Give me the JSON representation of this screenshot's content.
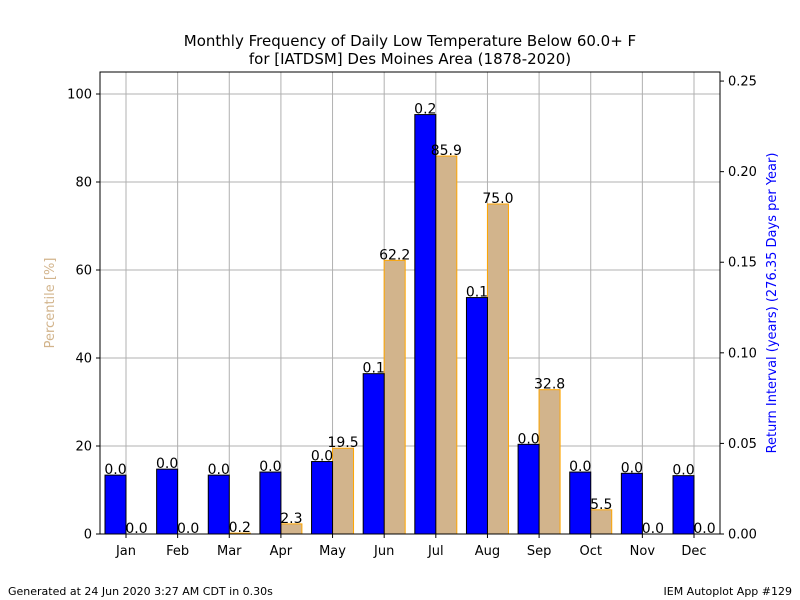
{
  "chart_data": {
    "type": "bar",
    "title": "Monthly Frequency of Daily Low Temperature Below 60.0+ F",
    "subtitle": "for [IATDSM] Des Moines Area (1878-2020)",
    "ylabel_left": "Percentile [%]",
    "ylabel_right": "Return Interval (years) (276.35 Days per Year)",
    "categories": [
      "Jan",
      "Feb",
      "Mar",
      "Apr",
      "May",
      "Jun",
      "Jul",
      "Aug",
      "Sep",
      "Oct",
      "Nov",
      "Dec"
    ],
    "ylim_left": [
      0,
      105
    ],
    "ylim_right": [
      0,
      0.255
    ],
    "yticks_left": [
      0,
      20,
      40,
      60,
      80,
      100
    ],
    "yticks_right": [
      0.0,
      0.05,
      0.1,
      0.15,
      0.2,
      0.25
    ],
    "grid": true,
    "series": [
      {
        "axis": "right",
        "color": "#0000ff",
        "values": [
          0.0325,
          0.0358,
          0.0325,
          0.0342,
          0.04,
          0.0885,
          0.2315,
          0.1305,
          0.0495,
          0.0342,
          0.0335,
          0.0322
        ],
        "labels": [
          "0.0",
          "0.0",
          "0.0",
          "0.0",
          "0.0",
          "0.1",
          "0.2",
          "0.1",
          "0.0",
          "0.0",
          "0.0",
          "0.0"
        ]
      },
      {
        "axis": "left",
        "color": "#d2b48c",
        "values": [
          0.0,
          0.0,
          0.2,
          2.3,
          19.5,
          62.2,
          85.9,
          75.0,
          32.8,
          5.5,
          0.0,
          0.0
        ],
        "labels": [
          "0.0",
          "0.0",
          "0.2",
          "2.3",
          "19.5",
          "62.2",
          "85.9",
          "75.0",
          "32.8",
          "5.5",
          "0.0",
          "0.0"
        ]
      }
    ]
  },
  "footer": {
    "left": "Generated at 24 Jun 2020 3:27 AM CDT in 0.30s",
    "right": "IEM Autoplot App #129"
  }
}
